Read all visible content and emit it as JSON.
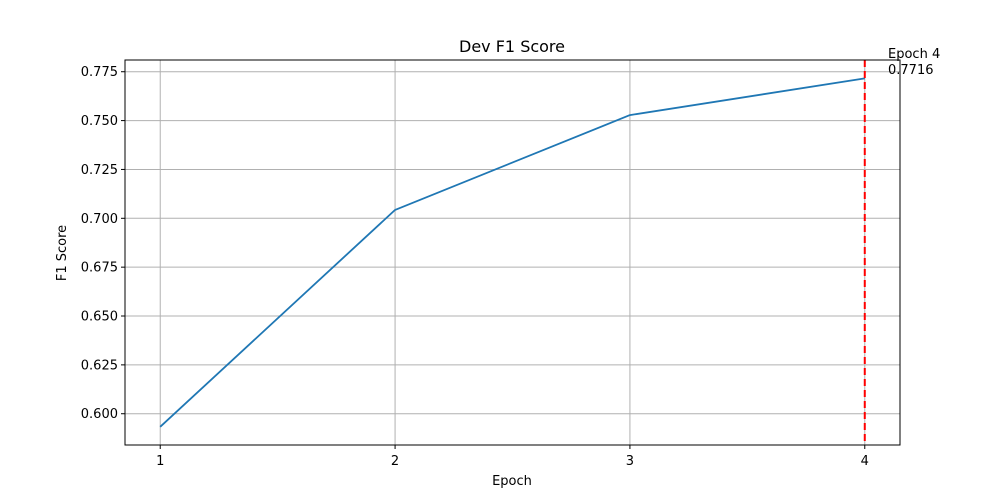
{
  "chart_data": {
    "type": "line",
    "title": "Dev F1 Score",
    "xlabel": "Epoch",
    "ylabel": "F1 Score",
    "x": [
      1,
      2,
      3,
      4
    ],
    "xticks": [
      "1",
      "2",
      "3",
      "4"
    ],
    "xlim": [
      0.85,
      4.15
    ],
    "ylim": [
      0.584,
      0.781
    ],
    "yticks": [
      "0.600",
      "0.625",
      "0.650",
      "0.675",
      "0.700",
      "0.725",
      "0.750",
      "0.775"
    ],
    "grid": true,
    "series": [
      {
        "values": [
          0.5933,
          0.7043,
          0.7528,
          0.7716
        ],
        "color": "#1f77b4"
      }
    ],
    "best_marker": {
      "x": 4,
      "color": "#ff0000",
      "style": "dashed",
      "label_line1": "Epoch 4",
      "label_line2": "0.7716"
    }
  }
}
